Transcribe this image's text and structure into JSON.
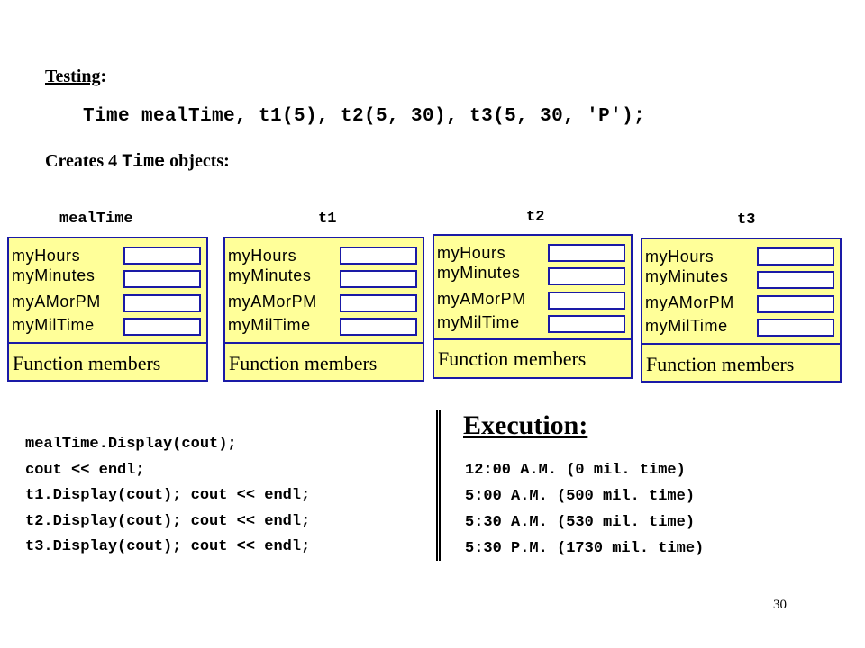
{
  "heading": {
    "label": "Testing",
    "colon": ":"
  },
  "declaration": "Time mealTime, t1(5), t2(5, 30), t3(5, 30, 'P');",
  "creates": {
    "prefix": "Creates 4 ",
    "code": "Time",
    "suffix": " objects",
    "colon": ":"
  },
  "objects": [
    {
      "name": "mealTime",
      "members": [
        "myHours",
        "myMinutes",
        "myAMorPM",
        "myMilTime"
      ],
      "function_label": "Function members"
    },
    {
      "name": "t1",
      "members": [
        "myHours",
        "myMinutes",
        "myAMorPM",
        "myMilTime"
      ],
      "function_label": "Function members"
    },
    {
      "name": "t2",
      "members": [
        "myHours",
        "myMinutes",
        "myAMorPM",
        "myMilTime"
      ],
      "function_label": "Function members"
    },
    {
      "name": "t3",
      "members": [
        "myHours",
        "myMinutes",
        "myAMorPM",
        "myMilTime"
      ],
      "function_label": "Function members"
    }
  ],
  "code_lines": [
    "mealTime.Display(cout);",
    "cout << endl;",
    "t1.Display(cout); cout << endl;",
    "t2.Display(cout); cout << endl;",
    "t3.Display(cout); cout << endl;"
  ],
  "execution": {
    "title": "Execution:",
    "lines": [
      "12:00 A.M. (0 mil. time)",
      "5:00 A.M. (500 mil. time)",
      "5:30 A.M. (530 mil. time)",
      "5:30 P.M. (1730 mil. time)"
    ]
  },
  "page_number": "30",
  "colors": {
    "box_fill": "#ffff99",
    "box_border": "#1a1aa6"
  }
}
